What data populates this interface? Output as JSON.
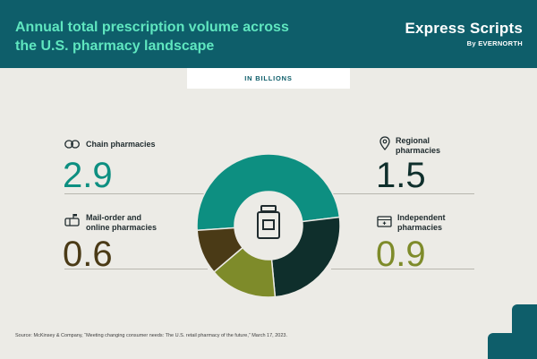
{
  "header": {
    "title_line1": "Annual total prescription volume across",
    "title_line2": "the U.S. pharmacy landscape",
    "brand": "Express Scripts",
    "brand_sub": "By EVERNORTH"
  },
  "units_label": "IN BILLIONS",
  "items": [
    {
      "label_line1": "Chain pharmacies",
      "label_line2": "",
      "value_text": "2.9",
      "color": "#0d8f81",
      "icon": "pills-icon"
    },
    {
      "label_line1": "Regional",
      "label_line2": "pharmacies",
      "value_text": "1.5",
      "color": "#0f2f2c",
      "icon": "location-pin-icon"
    },
    {
      "label_line1": "Independent",
      "label_line2": "pharmacies",
      "value_text": "0.9",
      "color": "#7e8b2a",
      "icon": "storefront-icon"
    },
    {
      "label_line1": "Mail-order and",
      "label_line2": "online pharmacies",
      "value_text": "0.6",
      "color": "#4a3a16",
      "icon": "mailbox-icon"
    }
  ],
  "chart_data": {
    "type": "pie",
    "style": "donut",
    "units": "billions",
    "categories": [
      "Chain pharmacies",
      "Regional pharmacies",
      "Independent pharmacies",
      "Mail-order and online pharmacies"
    ],
    "values": [
      2.9,
      1.5,
      0.9,
      0.6
    ],
    "colors": [
      "#0d8f81",
      "#0f2f2c",
      "#7e8b2a",
      "#4a3a16"
    ],
    "center_icon": "prescription-bottle-icon"
  },
  "source": "Source: McKinsey & Company, “Meeting changing consumer needs: The U.S. retail pharmacy of the future,” March 17, 2023."
}
